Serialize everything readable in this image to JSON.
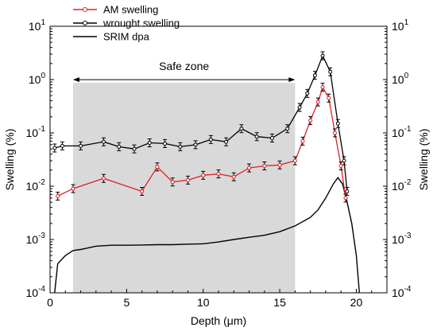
{
  "chart_data": {
    "type": "line",
    "xlabel": "Depth (μm)",
    "ylabel_left": "Swelling (%)",
    "ylabel_right": "Swelling (%)",
    "xlim": [
      0,
      22
    ],
    "ylim": [
      0.0001,
      10
    ],
    "yscale": "log",
    "x_ticks": [
      0,
      5,
      10,
      15,
      20
    ],
    "y_ticks": [
      {
        "value": 10,
        "mantissa": "10",
        "exp": "1"
      },
      {
        "value": 1,
        "mantissa": "10",
        "exp": "0"
      },
      {
        "value": 0.1,
        "mantissa": "10",
        "exp": "-1"
      },
      {
        "value": 0.01,
        "mantissa": "10",
        "exp": "-2"
      },
      {
        "value": 0.001,
        "mantissa": "10",
        "exp": "-3"
      },
      {
        "value": 0.0001,
        "mantissa": "10",
        "exp": "-4"
      }
    ],
    "grid": false,
    "legend_position": "top-left",
    "annotation": {
      "text": "Safe zone",
      "x_start": 1.5,
      "x_end": 16,
      "y": 0.9
    },
    "series": [
      {
        "name": "AM swelling",
        "color": "#e02020",
        "marker": "circle",
        "error_bars": true,
        "points": [
          [
            0.5,
            0.0065
          ],
          [
            1.5,
            0.009
          ],
          [
            3.5,
            0.014
          ],
          [
            6,
            0.008
          ],
          [
            7,
            0.023
          ],
          [
            8,
            0.012
          ],
          [
            9,
            0.013
          ],
          [
            10,
            0.016
          ],
          [
            11,
            0.017
          ],
          [
            12,
            0.015
          ],
          [
            13,
            0.022
          ],
          [
            14,
            0.024
          ],
          [
            15,
            0.025
          ],
          [
            16,
            0.03
          ],
          [
            16.5,
            0.07
          ],
          [
            17,
            0.17
          ],
          [
            17.5,
            0.38
          ],
          [
            17.8,
            0.72
          ],
          [
            18.2,
            0.45
          ],
          [
            18.6,
            0.1
          ],
          [
            19,
            0.024
          ],
          [
            19.3,
            0.006
          ]
        ]
      },
      {
        "name": "wrought swelling",
        "color": "#000000",
        "marker": "circle",
        "error_bars": true,
        "points": [
          [
            0.3,
            0.052
          ],
          [
            0.8,
            0.057
          ],
          [
            2,
            0.057
          ],
          [
            3.5,
            0.068
          ],
          [
            4.5,
            0.055
          ],
          [
            5.5,
            0.05
          ],
          [
            6.5,
            0.065
          ],
          [
            7.5,
            0.063
          ],
          [
            8.5,
            0.055
          ],
          [
            9.5,
            0.06
          ],
          [
            10.5,
            0.075
          ],
          [
            11.5,
            0.068
          ],
          [
            12.5,
            0.12
          ],
          [
            13.5,
            0.085
          ],
          [
            14.5,
            0.08
          ],
          [
            15.5,
            0.12
          ],
          [
            16.3,
            0.3
          ],
          [
            16.8,
            0.55
          ],
          [
            17.3,
            1.2
          ],
          [
            17.8,
            2.8
          ],
          [
            18.3,
            1.4
          ],
          [
            18.8,
            0.15
          ],
          [
            19.2,
            0.03
          ],
          [
            19.4,
            0.008
          ]
        ]
      },
      {
        "name": "SRIM dpa",
        "color": "#000000",
        "marker": "none",
        "error_bars": false,
        "points": [
          [
            0.3,
            0.0001
          ],
          [
            0.5,
            0.00035
          ],
          [
            1,
            0.0005
          ],
          [
            1.5,
            0.00062
          ],
          [
            2,
            0.00065
          ],
          [
            3,
            0.00075
          ],
          [
            4,
            0.00078
          ],
          [
            5,
            0.00078
          ],
          [
            6,
            0.00079
          ],
          [
            7,
            0.0008
          ],
          [
            8,
            0.0008
          ],
          [
            9,
            0.00082
          ],
          [
            10,
            0.00083
          ],
          [
            11,
            0.0009
          ],
          [
            12,
            0.001
          ],
          [
            13,
            0.0011
          ],
          [
            14,
            0.0012
          ],
          [
            15,
            0.0014
          ],
          [
            16,
            0.0018
          ],
          [
            17,
            0.0026
          ],
          [
            17.5,
            0.0036
          ],
          [
            18,
            0.006
          ],
          [
            18.5,
            0.011
          ],
          [
            18.8,
            0.0145
          ],
          [
            19.1,
            0.011
          ],
          [
            19.4,
            0.005
          ],
          [
            19.7,
            0.002
          ],
          [
            20,
            0.0005
          ],
          [
            20.2,
            0.0001
          ]
        ]
      }
    ]
  }
}
